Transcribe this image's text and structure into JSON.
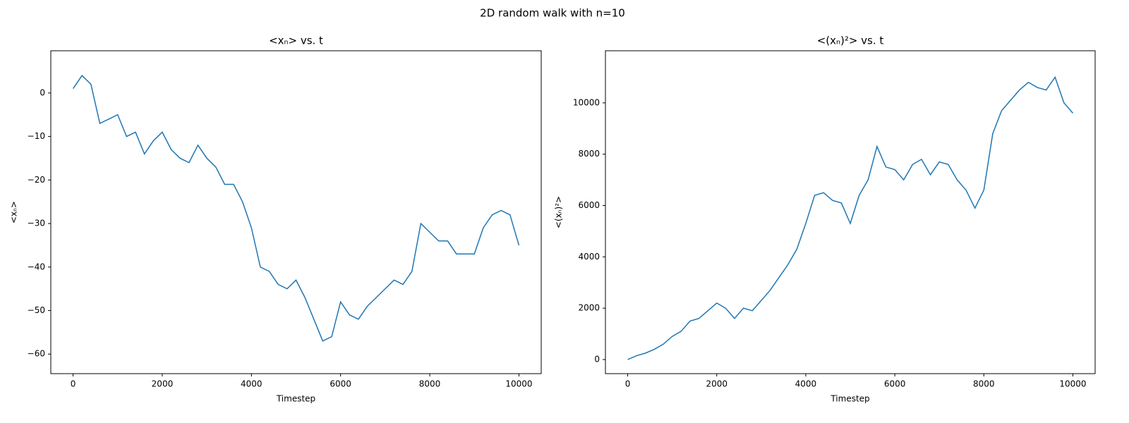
{
  "title": "2D random walk with n=10",
  "chart_data": [
    {
      "type": "line",
      "title": "<xₙ> vs. t",
      "xlabel": "Timestep",
      "ylabel": "<xₙ>",
      "color": "#1f77b4",
      "x": [
        0,
        200,
        400,
        600,
        800,
        1000,
        1200,
        1400,
        1600,
        1800,
        2000,
        2200,
        2400,
        2600,
        2800,
        3000,
        3200,
        3400,
        3600,
        3800,
        4000,
        4200,
        4400,
        4600,
        4800,
        5000,
        5200,
        5400,
        5600,
        5800,
        6000,
        6200,
        6400,
        6600,
        6800,
        7000,
        7200,
        7400,
        7600,
        7800,
        8000,
        8200,
        8400,
        8600,
        8800,
        9000,
        9200,
        9400,
        9600,
        9800,
        10000
      ],
      "values": [
        1,
        4,
        2,
        -7,
        -6,
        -5,
        -10,
        -9,
        -14,
        -11,
        -9,
        -13,
        -15,
        -16,
        -12,
        -15,
        -17,
        -21,
        -21,
        -25,
        -31,
        -40,
        -41,
        -44,
        -45,
        -43,
        -47,
        -52,
        -57,
        -56,
        -48,
        -51,
        -52,
        -49,
        -47,
        -45,
        -43,
        -44,
        -41,
        -30,
        -32,
        -34,
        -34,
        -37,
        -37,
        -37,
        -31,
        -28,
        -27,
        -28,
        -35
      ],
      "xlim": [
        -500,
        10500
      ],
      "ylim": [
        -64.5,
        9.7
      ],
      "xticks": [
        0,
        2000,
        4000,
        6000,
        8000,
        10000
      ],
      "yticks": [
        {
          "value": -60,
          "label": "−60"
        },
        {
          "value": -50,
          "label": "−50"
        },
        {
          "value": -40,
          "label": "−40"
        },
        {
          "value": -30,
          "label": "−30"
        },
        {
          "value": -20,
          "label": "−20"
        },
        {
          "value": -10,
          "label": "−10"
        },
        0
      ]
    },
    {
      "type": "line",
      "title": "<(xₙ)²> vs. t",
      "xlabel": "Timestep",
      "ylabel": "<(xₙ)²>",
      "color": "#1f77b4",
      "x": [
        0,
        200,
        400,
        600,
        800,
        1000,
        1200,
        1400,
        1600,
        1800,
        2000,
        2200,
        2400,
        2600,
        2800,
        3000,
        3200,
        3400,
        3600,
        3800,
        4000,
        4200,
        4400,
        4600,
        4800,
        5000,
        5200,
        5400,
        5600,
        5800,
        6000,
        6200,
        6400,
        6600,
        6800,
        7000,
        7200,
        7400,
        7600,
        7800,
        8000,
        8200,
        8400,
        8600,
        8800,
        9000,
        9200,
        9400,
        9600,
        9800,
        10000
      ],
      "values": [
        0,
        150,
        250,
        400,
        600,
        900,
        1100,
        1500,
        1600,
        1900,
        2200,
        2000,
        1600,
        2000,
        1900,
        2300,
        2700,
        3200,
        3700,
        4300,
        5300,
        6400,
        6500,
        6200,
        6100,
        5300,
        6400,
        7000,
        8300,
        7500,
        7400,
        7000,
        7600,
        7800,
        7200,
        7700,
        7600,
        7000,
        6600,
        5900,
        6600,
        8800,
        9700,
        10100,
        10500,
        10800,
        10600,
        10500,
        11000,
        10000,
        9600
      ],
      "xlim": [
        -500,
        10500
      ],
      "ylim": [
        -550,
        12030
      ],
      "xticks": [
        0,
        2000,
        4000,
        6000,
        8000,
        10000
      ],
      "yticks": [
        0,
        2000,
        4000,
        6000,
        8000,
        10000
      ]
    }
  ]
}
